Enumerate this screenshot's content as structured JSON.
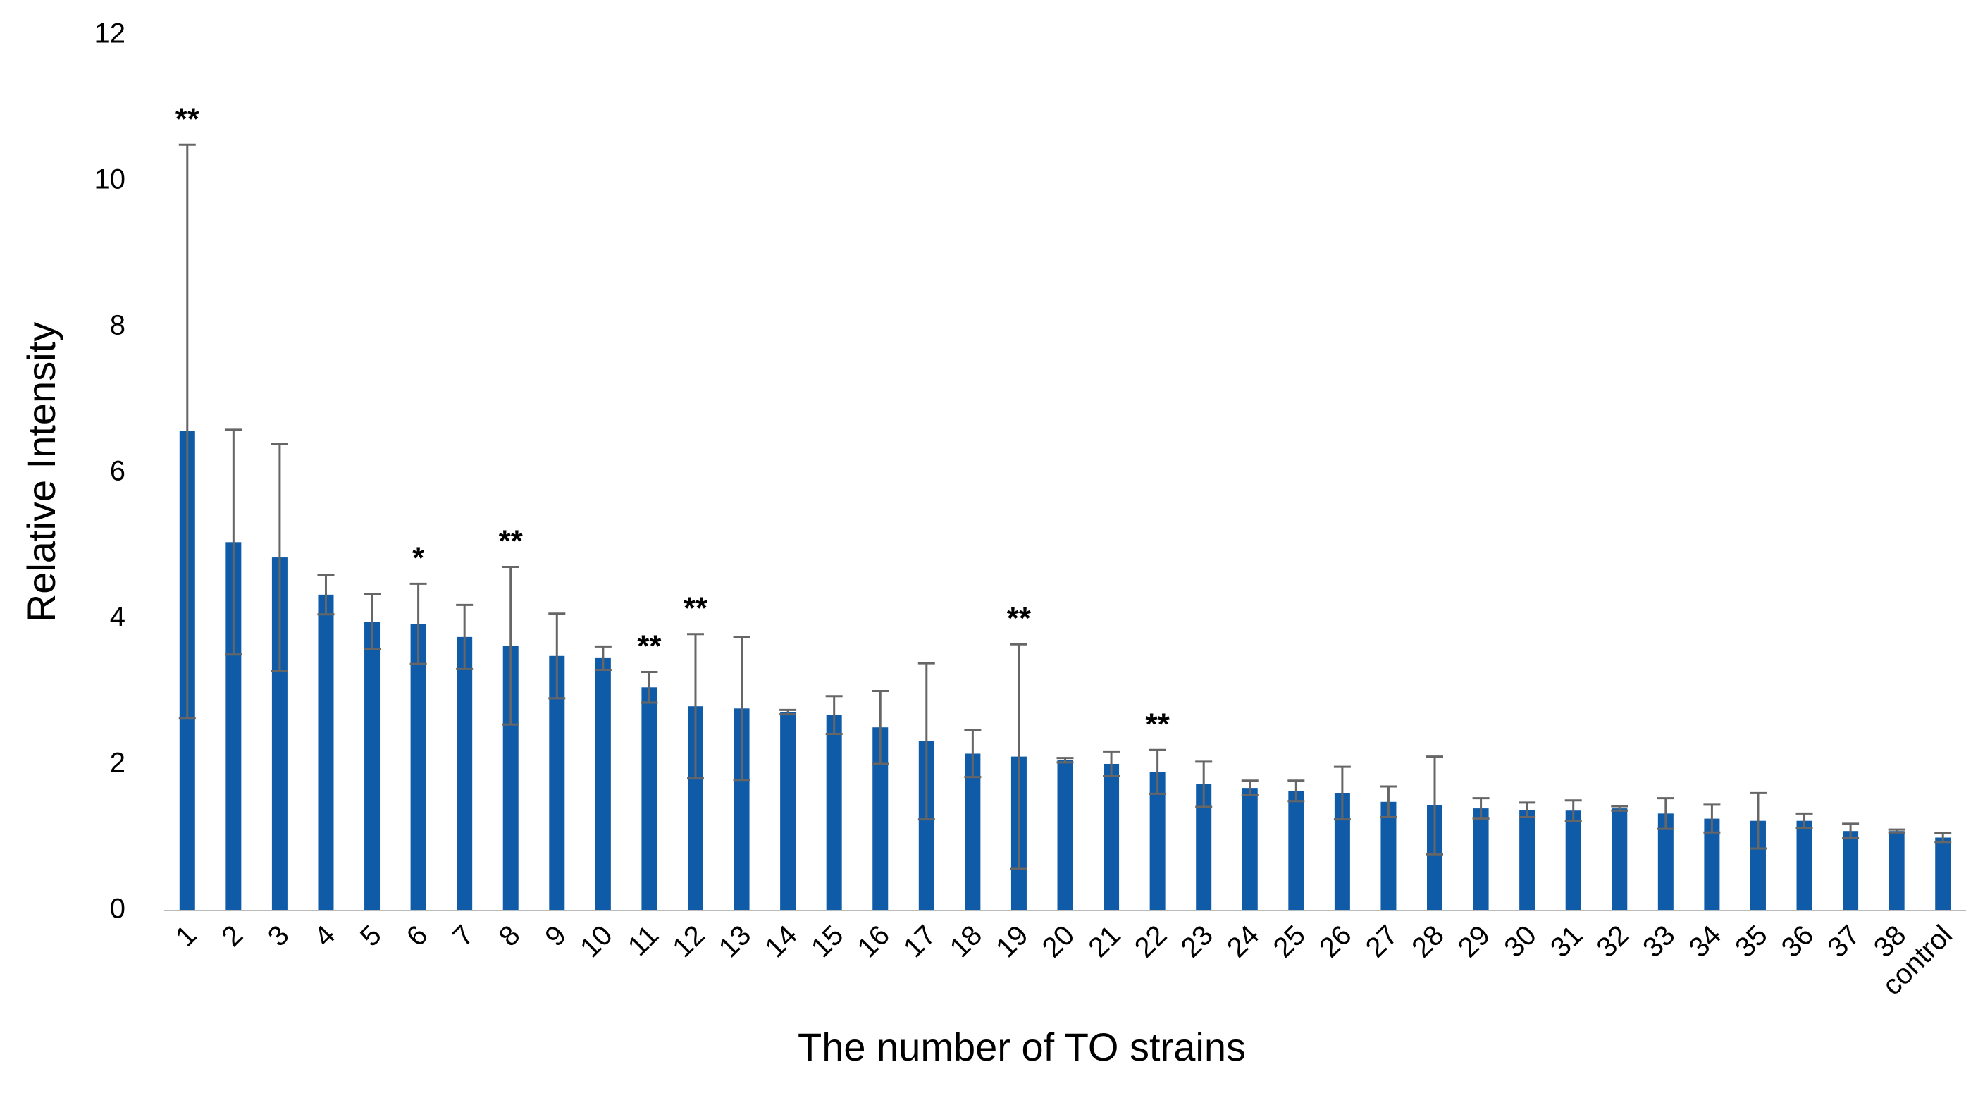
{
  "chart_data": {
    "type": "bar",
    "x_label": "The number of TO strains",
    "y_label": "Relative Intensity",
    "categories": [
      "1",
      "2",
      "3",
      "4",
      "5",
      "6",
      "7",
      "8",
      "9",
      "10",
      "11",
      "12",
      "13",
      "14",
      "15",
      "16",
      "17",
      "18",
      "19",
      "20",
      "21",
      "22",
      "23",
      "24",
      "25",
      "26",
      "27",
      "28",
      "29",
      "30",
      "31",
      "32",
      "33",
      "34",
      "35",
      "36",
      "37",
      "38",
      "control"
    ],
    "values": [
      6.57,
      5.05,
      4.84,
      4.33,
      3.96,
      3.93,
      3.75,
      3.63,
      3.49,
      3.46,
      3.06,
      2.8,
      2.77,
      2.72,
      2.68,
      2.51,
      2.32,
      2.15,
      2.11,
      2.06,
      2.01,
      1.9,
      1.73,
      1.68,
      1.64,
      1.61,
      1.49,
      1.44,
      1.4,
      1.38,
      1.37,
      1.4,
      1.33,
      1.26,
      1.23,
      1.23,
      1.09,
      1.09,
      1.0
    ],
    "errors": [
      3.93,
      1.54,
      1.56,
      0.27,
      0.38,
      0.55,
      0.44,
      1.08,
      0.58,
      0.16,
      0.21,
      0.99,
      0.98,
      0.03,
      0.26,
      0.5,
      1.07,
      0.32,
      1.54,
      0.03,
      0.17,
      0.3,
      0.31,
      0.1,
      0.14,
      0.36,
      0.21,
      0.67,
      0.14,
      0.1,
      0.14,
      0.03,
      0.21,
      0.19,
      0.38,
      0.1,
      0.1,
      0.02,
      0.06
    ],
    "significance": [
      "**",
      null,
      null,
      null,
      null,
      "*",
      null,
      "**",
      null,
      null,
      "**",
      "**",
      null,
      null,
      null,
      null,
      null,
      null,
      "**",
      null,
      null,
      "**",
      null,
      null,
      null,
      null,
      null,
      null,
      null,
      null,
      null,
      null,
      null,
      null,
      null,
      null,
      null,
      null,
      null
    ],
    "color": "#0f5ba7",
    "error_color": "#666666",
    "ylim": [
      0,
      12
    ],
    "yticks": [
      0,
      2,
      4,
      6,
      8,
      10,
      12
    ],
    "grid": false
  }
}
